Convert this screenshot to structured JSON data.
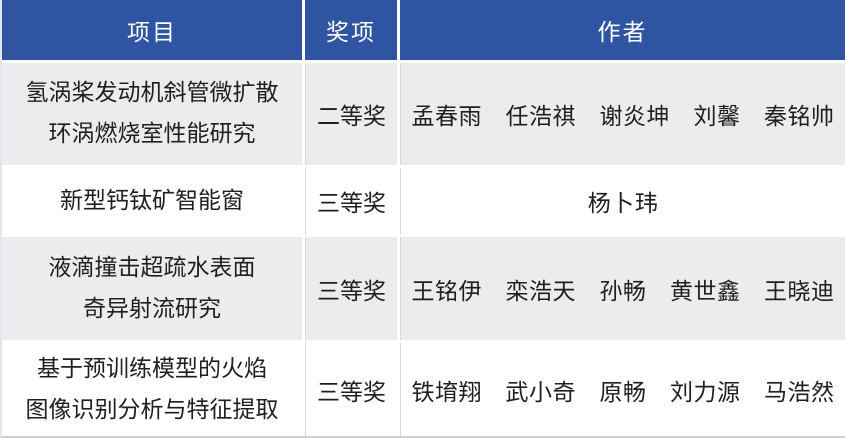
{
  "table": {
    "header": {
      "project": "项目",
      "award": "奖项",
      "authors": "作者"
    },
    "rows": [
      {
        "project": "氢涡桨发动机斜管微扩散\n环涡燃烧室性能研究",
        "award": "二等奖",
        "authors": "孟春雨　任浩祺　谢炎坤　刘馨　秦铭帅"
      },
      {
        "project": "新型钙钛矿智能窗",
        "award": "三等奖",
        "authors": "杨卜玮"
      },
      {
        "project": "液滴撞击超疏水表面\n奇异射流研究",
        "award": "三等奖",
        "authors": "王铭伊　栾浩天　孙畅　黄世鑫　王晓迪"
      },
      {
        "project": "基于预训练模型的火焰\n图像识别分析与特征提取",
        "award": "三等奖",
        "authors": "铁堉翔　武小奇　原畅　刘力源　马浩然"
      }
    ],
    "colors": {
      "header_bg": "#2f55a2",
      "header_text": "#ffffff",
      "row_alt_bg": "#ececee",
      "row_bg": "#ffffff",
      "text": "#1f1f1f",
      "cell_border": "#d8d8dc",
      "edge_border": "#e4e6ec",
      "bottom_border": "#cfcfd4"
    }
  }
}
